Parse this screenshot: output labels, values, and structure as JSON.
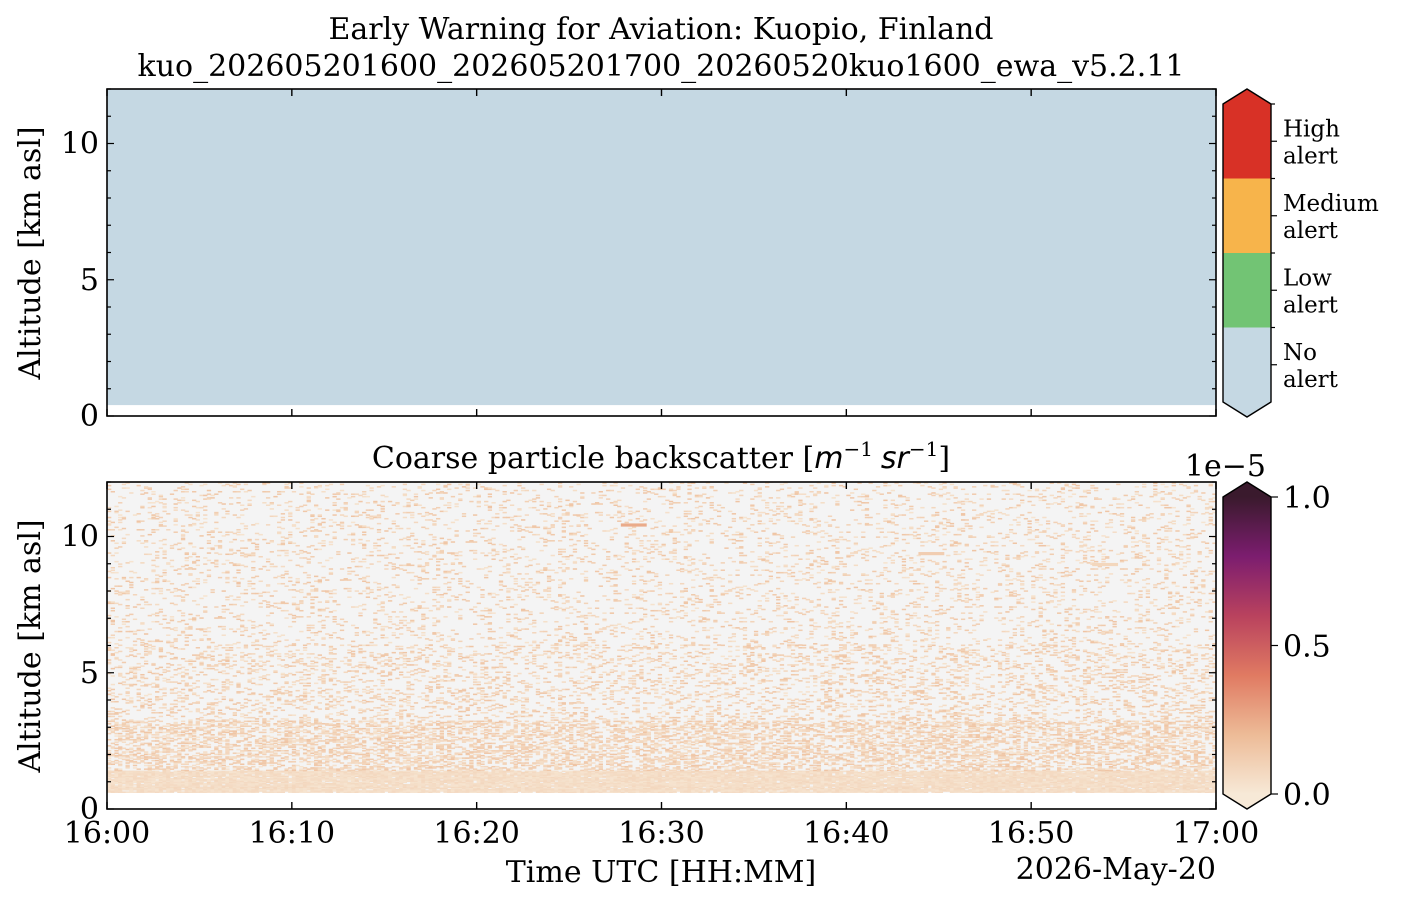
{
  "figure": {
    "title_line1": "Early Warning for Aviation: Kuopio, Finland",
    "title_line2": "kuo_202605201600_202605201700_20260520kuo1600_ewa_v5.2.11"
  },
  "chart_data": [
    {
      "type": "heatmap",
      "panel": "alert",
      "title": "",
      "xlabel": "",
      "ylabel": "Altitude [km asl]",
      "xlim": [
        "16:00",
        "17:00"
      ],
      "ylim": [
        0,
        12
      ],
      "y_ticks": [
        "0",
        "5",
        "10"
      ],
      "y_tick_values": [
        0,
        5,
        10
      ],
      "y_minor_step": 1,
      "x_ticks": [
        "16:00",
        "16:10",
        "16:20",
        "16:30",
        "16:40",
        "16:50",
        "17:00"
      ],
      "x_tick_values": [
        0,
        10,
        20,
        30,
        40,
        50,
        60
      ],
      "field": [
        {
          "t0": 0,
          "t1": 60,
          "z0": 0.4,
          "z1": 12,
          "category": "No alert"
        }
      ],
      "colorbar": {
        "categories": [
          {
            "label_line1": "No",
            "label_line2": "alert",
            "color": "#c5d8e3"
          },
          {
            "label_line1": "Low",
            "label_line2": "alert",
            "color": "#72c474"
          },
          {
            "label_line1": "Medium",
            "label_line2": "alert",
            "color": "#f7b44b"
          },
          {
            "label_line1": "High",
            "label_line2": "alert",
            "color": "#d83126"
          }
        ],
        "extend": "both"
      }
    },
    {
      "type": "heatmap",
      "panel": "backscatter",
      "title": "Coarse particle backscatter",
      "title_math": [
        "m",
        "−1",
        "sr",
        "−1"
      ],
      "xlabel": "Time UTC [HH:MM]",
      "ylabel": "Altitude [km asl]",
      "xlim": [
        "16:00",
        "17:00"
      ],
      "ylim": [
        0,
        12
      ],
      "date_label": "2026-May-20",
      "y_ticks": [
        "0",
        "5",
        "10"
      ],
      "y_tick_values": [
        0,
        5,
        10
      ],
      "y_minor_step": 1,
      "x_ticks": [
        "16:00",
        "16:10",
        "16:20",
        "16:30",
        "16:40",
        "16:50",
        "17:00"
      ],
      "x_tick_values": [
        0,
        10,
        20,
        30,
        40,
        50,
        60
      ],
      "background_color": "#f4f4f4",
      "data_bottom_km": 0.6,
      "layers": [
        {
          "z0": 0.6,
          "z1": 1.4,
          "density": 0.95
        },
        {
          "z0": 1.4,
          "z1": 3.2,
          "density": 0.45
        },
        {
          "z0": 3.2,
          "z1": 6.0,
          "density": 0.2
        },
        {
          "z0": 6.0,
          "z1": 12.0,
          "density": 0.12
        }
      ],
      "features": [
        {
          "t": 28.5,
          "z": 10.4,
          "value": 0.25
        },
        {
          "t": 44.6,
          "z": 9.35,
          "value": 0.12
        },
        {
          "t": 54.0,
          "z": 8.95,
          "value": 0.08
        }
      ],
      "colorbar": {
        "min": 0.0,
        "max": 1.0,
        "ticks": [
          "0.0",
          "0.5",
          "1.0"
        ],
        "tick_values": [
          0,
          0.5,
          1.0
        ],
        "multiplier": "1e−5",
        "colormap": [
          "#f7e9d7",
          "#edbb97",
          "#e07a62",
          "#b9425e",
          "#7c1d6f",
          "#3a1a2d"
        ],
        "extend": "both"
      }
    }
  ]
}
